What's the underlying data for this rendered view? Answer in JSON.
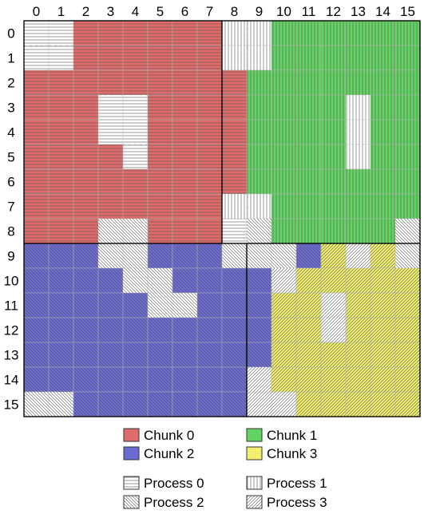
{
  "grid": {
    "columns": [
      "0",
      "1",
      "2",
      "3",
      "4",
      "5",
      "6",
      "7",
      "8",
      "9",
      "10",
      "11",
      "12",
      "13",
      "14",
      "15"
    ],
    "rows": [
      "0",
      "1",
      "2",
      "3",
      "4",
      "5",
      "6",
      "7",
      "8",
      "9",
      "10",
      "11",
      "12",
      "13",
      "14",
      "15"
    ],
    "chunk_blocks": [
      {
        "chunk": 0,
        "col_from": 0,
        "col_to": 7,
        "row_from": 0,
        "row_to": 8
      },
      {
        "chunk": 1,
        "col_from": 8,
        "col_to": 15,
        "row_from": 0,
        "row_to": 8
      },
      {
        "chunk": 2,
        "col_from": 0,
        "col_to": 8,
        "row_from": 9,
        "row_to": 15
      },
      {
        "chunk": 3,
        "col_from": 9,
        "col_to": 15,
        "row_from": 9,
        "row_to": 15
      }
    ],
    "cell_rows": [
      "0000000011111111",
      "0000000011111111",
      "0000000001111111",
      "0000000001111111",
      "0000000001111111",
      "0000000001111111",
      "0000000001111111",
      "0000000011111111",
      "0002200000111112",
      "2222222222223332",
      "2222222222333333",
      "2222222222333333",
      "2222222222333333",
      "2222222222333333",
      "2222222223333333",
      "2222222223333333"
    ],
    "chunk_rows": [
      "0000000011111111",
      "0000000011111111",
      "0000000011111111",
      "0000000011111111",
      "0000000011111111",
      "0000000011111111",
      "0000000011111111",
      "0000000011111111",
      "0000000011111111",
      "2222222233333333",
      "2222222233333333",
      "2222222233333333",
      "2222222233333333",
      "2222222233333333",
      "2222222233333333",
      "2222222233333333"
    ],
    "owner_rows": [
      "0000000011111111",
      "0000000011111111",
      "0000000001111111",
      "0000000001111111",
      "0000000001111111",
      "0000000001111111",
      "0000000001111111",
      "0000000011111111",
      "0002200002111112",
      "2222222222223332",
      "2222222222333333",
      "2222222222333333",
      "2222222222333333",
      "2222222222333333",
      "2222222223333333",
      "2222222223333333"
    ],
    "white_rows": [
      "1100000011000000",
      "1100000011000000",
      "0000000000000000",
      "0001100000000100",
      "0001100000000100",
      "0000100000000100",
      "0000000000000000",
      "0000000011000000",
      "0001100011000001",
      "0001100011100101",
      "0000110000100000",
      "0000011000001000",
      "0000000000001000",
      "0000000000000000",
      "0000000001000000",
      "1100000001100000"
    ]
  },
  "legend": {
    "chunks": [
      {
        "label": "Chunk 0",
        "color": "#e06b6b"
      },
      {
        "label": "Chunk 1",
        "color": "#63d463"
      },
      {
        "label": "Chunk 2",
        "color": "#6b6bd6"
      },
      {
        "label": "Chunk 3",
        "color": "#f0f06e"
      }
    ],
    "processes": [
      {
        "label": "Process 0",
        "pattern": "horizontal-lines"
      },
      {
        "label": "Process 1",
        "pattern": "vertical-lines"
      },
      {
        "label": "Process 2",
        "pattern": "backslash-hatch"
      },
      {
        "label": "Process 3",
        "pattern": "forward-hatch"
      }
    ]
  }
}
